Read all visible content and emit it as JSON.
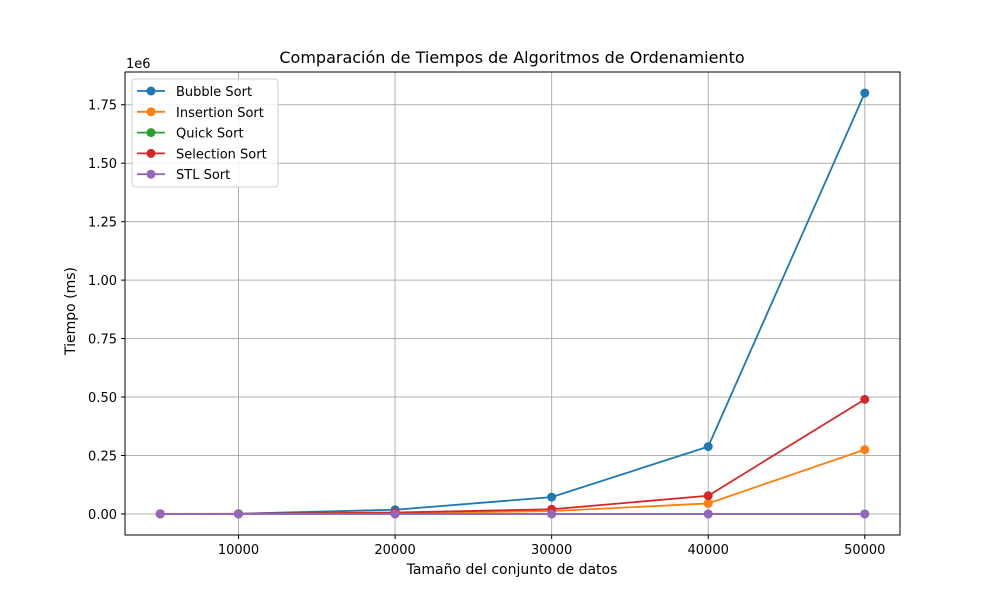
{
  "chart_data": {
    "type": "line",
    "title": "Comparación de Tiempos de Algoritmos de Ordenamiento",
    "xlabel": "Tamaño del conjunto de datos",
    "ylabel": "Tiempo (ms)",
    "y_offset_label": "1e6",
    "x": [
      5000,
      10000,
      20000,
      30000,
      40000,
      50000
    ],
    "xticks": [
      10000,
      20000,
      30000,
      40000,
      50000
    ],
    "xtick_labels": [
      "10000",
      "20000",
      "30000",
      "40000",
      "50000"
    ],
    "yticks": [
      0,
      250000,
      500000,
      750000,
      1000000,
      1250000,
      1500000,
      1750000
    ],
    "ytick_labels": [
      "0.00",
      "0.25",
      "0.50",
      "0.75",
      "1.00",
      "1.25",
      "1.50",
      "1.75"
    ],
    "xlim": [
      2750,
      52250
    ],
    "ylim": [
      -90000,
      1890000
    ],
    "grid": true,
    "legend_position": "top-left",
    "series": [
      {
        "name": "Bubble Sort",
        "color": "#1f77b4",
        "values": [
          500,
          1000,
          18000,
          72000,
          288000,
          1800000
        ]
      },
      {
        "name": "Insertion Sort",
        "color": "#ff7f0e",
        "values": [
          100,
          400,
          3000,
          12000,
          45000,
          275000
        ]
      },
      {
        "name": "Quick Sort",
        "color": "#2ca02c",
        "values": [
          2,
          4,
          9,
          14,
          19,
          25
        ]
      },
      {
        "name": "Selection Sort",
        "color": "#d62728",
        "values": [
          200,
          800,
          6000,
          20000,
          78000,
          490000
        ]
      },
      {
        "name": "STL Sort",
        "color": "#9467bd",
        "values": [
          2,
          3,
          7,
          11,
          16,
          20
        ]
      }
    ]
  }
}
